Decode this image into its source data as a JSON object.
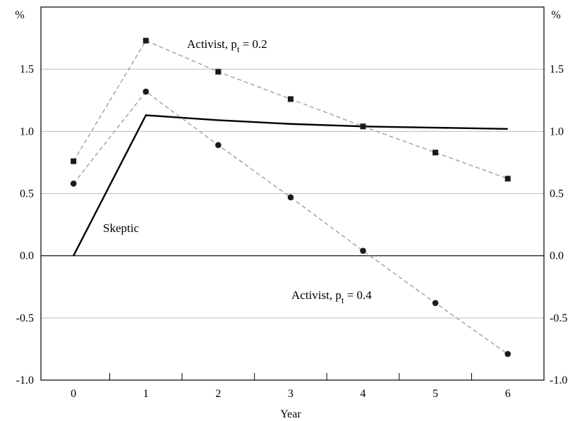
{
  "chart_data": {
    "type": "line",
    "x": [
      0,
      1,
      2,
      3,
      4,
      5,
      6
    ],
    "xlabel": "Year",
    "ylabel_left": "%",
    "ylabel_right": "%",
    "ylim": [
      -1.0,
      2.0
    ],
    "xlim": [
      -0.45,
      6.5
    ],
    "yticks": [
      "-1.0",
      "-0.5",
      "0.0",
      "0.5",
      "1.0",
      "1.5"
    ],
    "yticks_right": [
      "-1.0",
      "-0.5",
      "0.0",
      "0.5",
      "1.0",
      "1.5"
    ],
    "xticks": [
      "0",
      "1",
      "2",
      "3",
      "4",
      "5",
      "6"
    ],
    "grid": true,
    "series": [
      {
        "name": "Skeptic",
        "style": "solid",
        "color": "#000000",
        "values": [
          0.0,
          1.13,
          1.09,
          1.06,
          1.04,
          1.03,
          1.02
        ]
      },
      {
        "name_prefix": "Activist, p",
        "name_sub": "t",
        "name_suffix": " = 0.2",
        "style": "dashed",
        "marker": "square",
        "color": "#aaaaaa",
        "values": [
          0.76,
          1.73,
          1.48,
          1.26,
          1.04,
          0.83,
          0.62
        ]
      },
      {
        "name_prefix": "Activist, p",
        "name_sub": "t",
        "name_suffix": " = 0.4",
        "style": "dashed",
        "marker": "circle",
        "color": "#aaaaaa",
        "values": [
          0.58,
          1.32,
          0.89,
          0.47,
          0.04,
          -0.38,
          -0.79
        ]
      }
    ]
  }
}
